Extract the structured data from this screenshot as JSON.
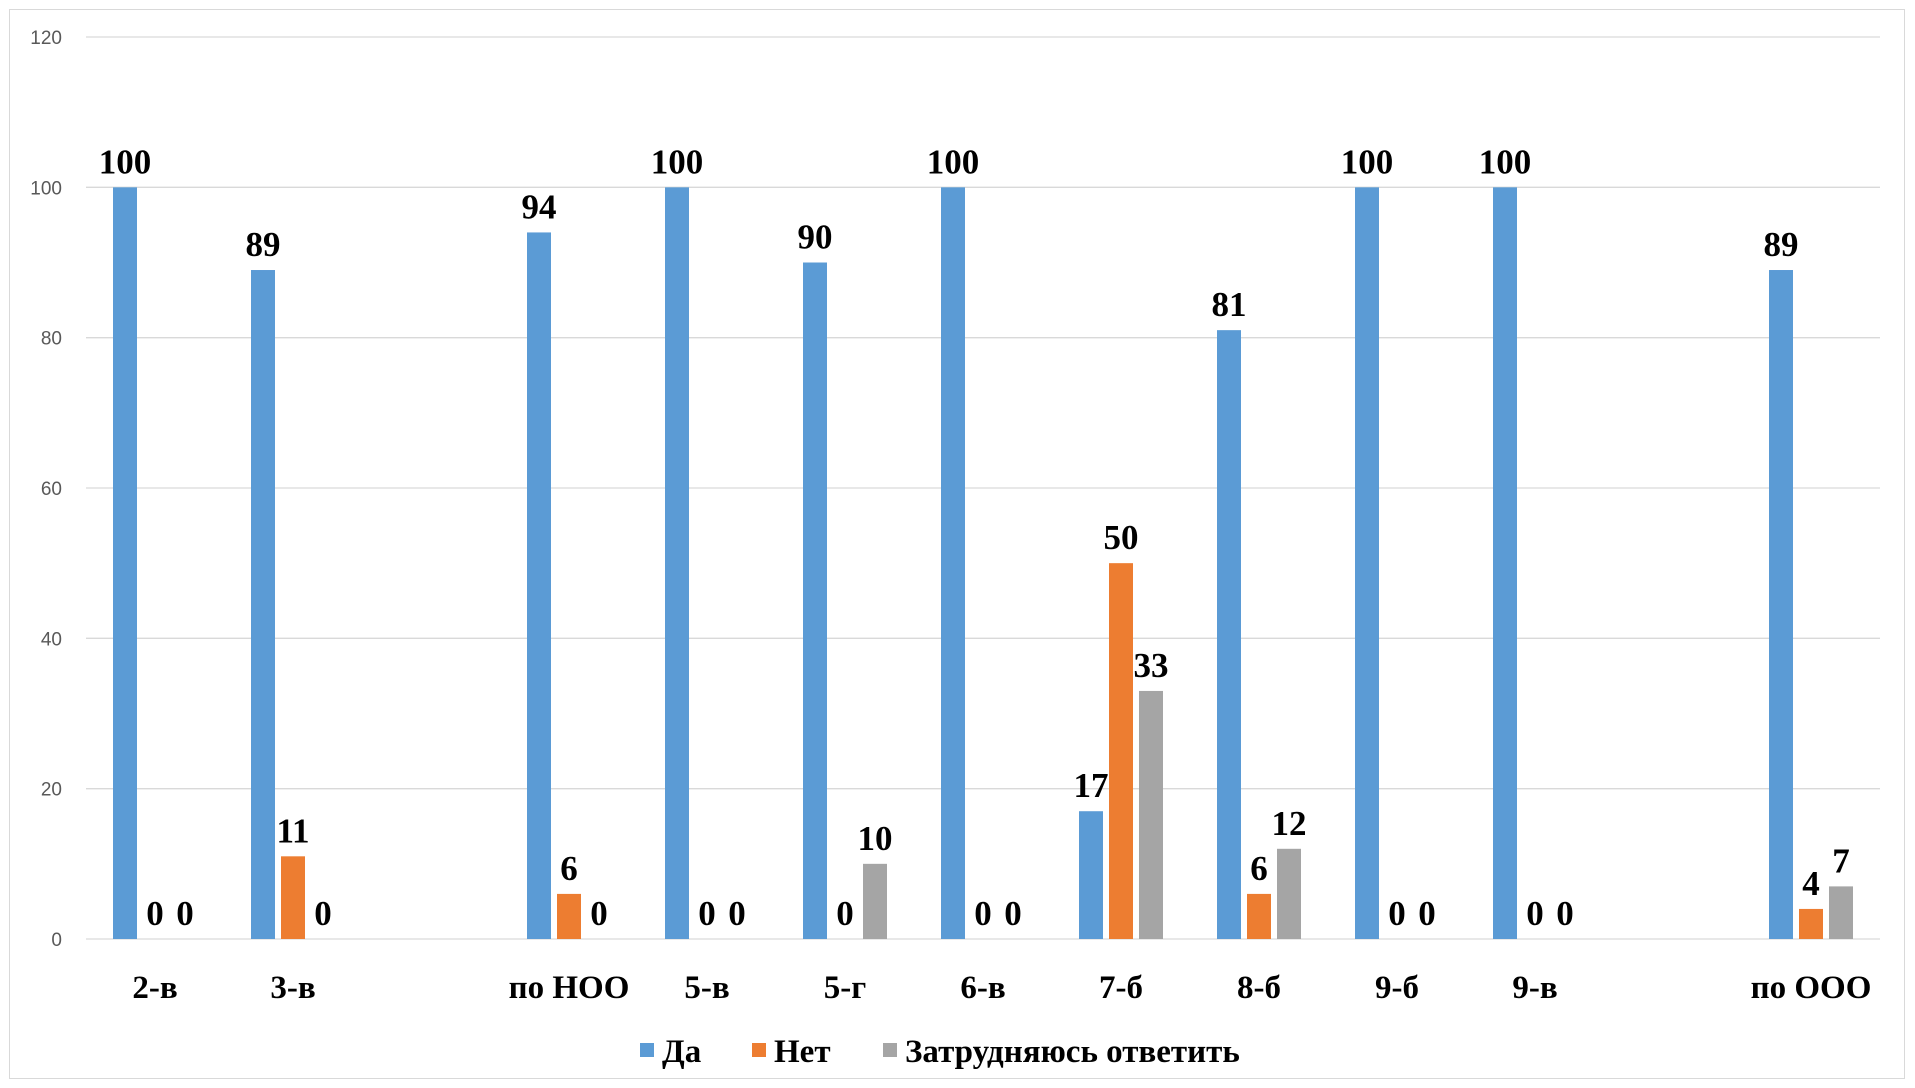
{
  "chart_data": {
    "type": "bar",
    "title": "",
    "xlabel": "",
    "ylabel": "",
    "ylim": [
      0,
      120
    ],
    "yticks": [
      0,
      20,
      40,
      60,
      80,
      100,
      120
    ],
    "grid": true,
    "legend_position": "bottom",
    "categories": [
      "2-в",
      "3-в",
      "",
      "по НОО",
      "5-в",
      "5-г",
      "6-в",
      "7-б",
      "8-б",
      "9-б",
      "9-в",
      "",
      "по ООО"
    ],
    "series": [
      {
        "name": "Да",
        "color": "#5b9bd5",
        "values": [
          100,
          89,
          null,
          94,
          100,
          90,
          100,
          17,
          81,
          100,
          100,
          null,
          89
        ],
        "labels": [
          "100",
          "89",
          "",
          "94",
          "100",
          "90",
          "100",
          "17",
          "81",
          "100",
          "100",
          "",
          "89"
        ]
      },
      {
        "name": "Нет",
        "color": "#ed7d31",
        "values": [
          0,
          11,
          null,
          6,
          0,
          0,
          0,
          50,
          6,
          0,
          0,
          null,
          4
        ],
        "labels": [
          "0",
          "11",
          "",
          "6",
          "0",
          "0",
          "0",
          "50",
          "6",
          "0",
          "0",
          "",
          "4"
        ]
      },
      {
        "name": "Затрудняюсь ответить",
        "color": "#a5a5a5",
        "values": [
          0,
          0,
          null,
          0,
          0,
          10,
          0,
          33,
          12,
          0,
          0,
          null,
          7
        ],
        "labels": [
          "0",
          "0",
          "",
          "0",
          "0",
          "10",
          "0",
          "33",
          "12",
          "0",
          "0",
          "",
          "7"
        ]
      }
    ]
  }
}
